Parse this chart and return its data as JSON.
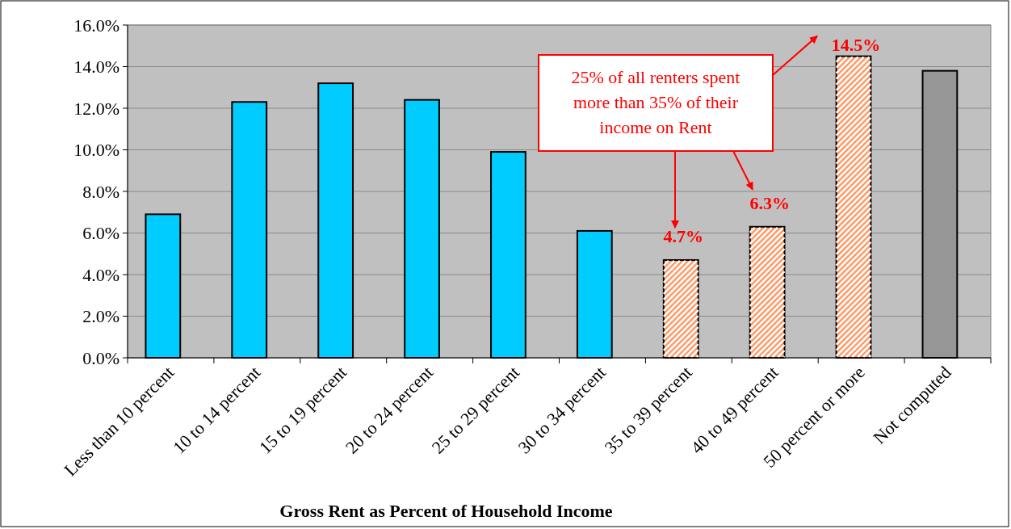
{
  "chart_data": {
    "type": "bar",
    "xlabel": "Gross Rent as Percent of Household Income",
    "categories": [
      "Less than 10 percent",
      "10 to 14 percent",
      "15 to 19 percent",
      "20 to 24 percent",
      "25 to 29 percent",
      "30 to 34 percent",
      "35 to 39 percent",
      "40 to 49 percent",
      "50 percent or more",
      "Not computed"
    ],
    "values": [
      6.9,
      12.3,
      13.2,
      12.4,
      9.9,
      6.1,
      4.7,
      6.3,
      14.5,
      13.8
    ],
    "colors": [
      "#00ccff",
      "#00ccff",
      "#00ccff",
      "#00ccff",
      "#00ccff",
      "#00ccff",
      "#ff9966",
      "#ff9966",
      "#ff9966",
      "#969696"
    ],
    "value_labels": [
      null,
      null,
      null,
      null,
      null,
      null,
      "4.7%",
      "6.3%",
      "14.5%",
      null
    ],
    "ylim": [
      0,
      16
    ],
    "yticks": [
      {
        "value": 0,
        "label": "0.0%"
      },
      {
        "value": 2,
        "label": "2.0%"
      },
      {
        "value": 4,
        "label": "4.0%"
      },
      {
        "value": 6,
        "label": "6.0%"
      },
      {
        "value": 8,
        "label": "8.0%"
      },
      {
        "value": 10,
        "label": "10.0%"
      },
      {
        "value": 12,
        "label": "12.0%"
      },
      {
        "value": 14,
        "label": "14.0%"
      },
      {
        "value": 16,
        "label": "16.0%"
      }
    ],
    "grid": "y",
    "annotations": [
      "25% of all renters spent more than 35% of their income on Rent"
    ]
  }
}
